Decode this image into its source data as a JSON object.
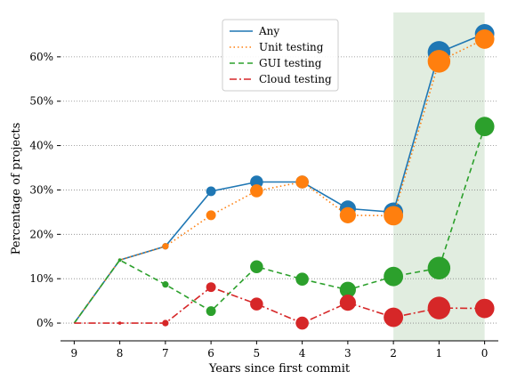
{
  "chart_data": {
    "type": "line",
    "xlabel": "Years since first commit",
    "ylabel": "Percentage of projects",
    "x": [
      9,
      8,
      7,
      6,
      5,
      4,
      3,
      2,
      1,
      0
    ],
    "xlim": [
      9.3,
      -0.3
    ],
    "ylim": [
      -0.04,
      0.7
    ],
    "y_ticks": [
      0,
      0.1,
      0.2,
      0.3,
      0.4,
      0.5,
      0.6
    ],
    "y_tick_labels": [
      "0%",
      "10%",
      "20%",
      "30%",
      "40%",
      "50%",
      "60%"
    ],
    "grid": "horizontal dotted",
    "legend_position": "top-center",
    "highlight_region": {
      "x_from": 2,
      "x_to": 0,
      "color": "#c9dfc6"
    },
    "series": [
      {
        "name": "Any",
        "color": "#1f77b4",
        "linestyle": "solid",
        "values": [
          0.0,
          0.142,
          0.173,
          0.297,
          0.318,
          0.318,
          0.258,
          0.25,
          0.61,
          0.652
        ],
        "marker_sizes": [
          0,
          2,
          4,
          6,
          8,
          8,
          10,
          12,
          14,
          12
        ]
      },
      {
        "name": "Unit testing",
        "color": "#ff7f0e",
        "linestyle": "dotted",
        "values": [
          0.0,
          0.142,
          0.173,
          0.243,
          0.298,
          0.318,
          0.243,
          0.242,
          0.59,
          0.64
        ],
        "marker_sizes": [
          0,
          2,
          4,
          6,
          8,
          8,
          10,
          12,
          14,
          12
        ]
      },
      {
        "name": "GUI testing",
        "color": "#2ca02c",
        "linestyle": "dashed",
        "values": [
          0.0,
          0.142,
          0.087,
          0.027,
          0.127,
          0.099,
          0.075,
          0.105,
          0.124,
          0.443
        ],
        "marker_sizes": [
          0,
          2,
          4,
          6,
          8,
          8,
          10,
          12,
          14,
          12
        ]
      },
      {
        "name": "Cloud testing",
        "color": "#d62728",
        "linestyle": "dashdot",
        "values": [
          0.0,
          0.0,
          0.0,
          0.081,
          0.043,
          0.0,
          0.046,
          0.013,
          0.034,
          0.033
        ],
        "marker_sizes": [
          0,
          2,
          4,
          6,
          8,
          8,
          10,
          12,
          14,
          12
        ]
      }
    ]
  }
}
